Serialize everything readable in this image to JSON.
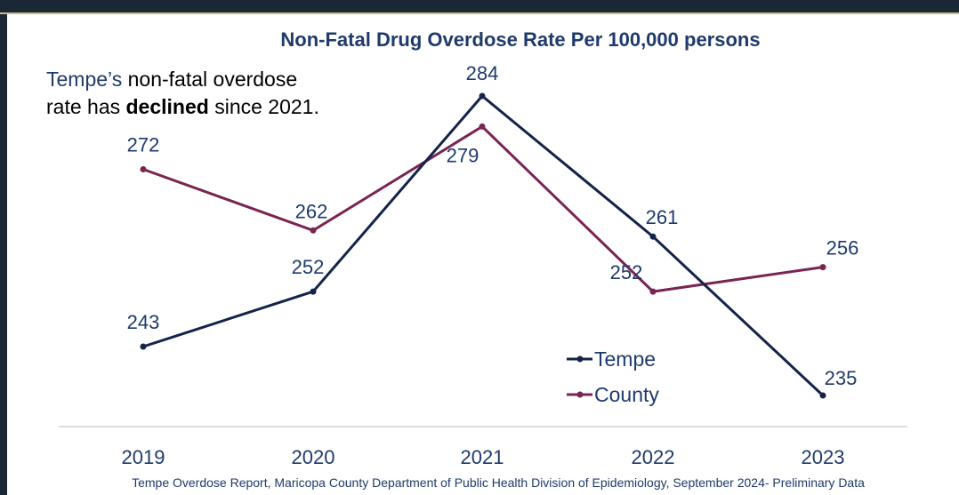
{
  "chart_data": {
    "type": "line",
    "title": "Non-Fatal Drug Overdose Rate Per 100,000 persons",
    "categories": [
      "2019",
      "2020",
      "2021",
      "2022",
      "2023"
    ],
    "series": [
      {
        "name": "Tempe",
        "values": [
          243,
          252,
          284,
          261,
          235
        ],
        "color": "#14234a"
      },
      {
        "name": "County",
        "values": [
          272,
          262,
          279,
          252,
          256
        ],
        "color": "#7a2451"
      }
    ],
    "callout": {
      "line1_prefix": "Tempe’s",
      "line1_rest": " non-fatal overdose",
      "line2_prefix": "rate has ",
      "line2_bold": "declined",
      "line2_suffix": " since 2021."
    },
    "legend": {
      "position": "bottom-center"
    },
    "grid": false,
    "source": "Tempe Overdose Report, Maricopa County Department of Public Health Division of Epidemiology, September 2024- Preliminary Data"
  },
  "colors": {
    "border": "#1a2836",
    "accent_gold": "#c9b98a",
    "axis": "#d0d0d0"
  }
}
